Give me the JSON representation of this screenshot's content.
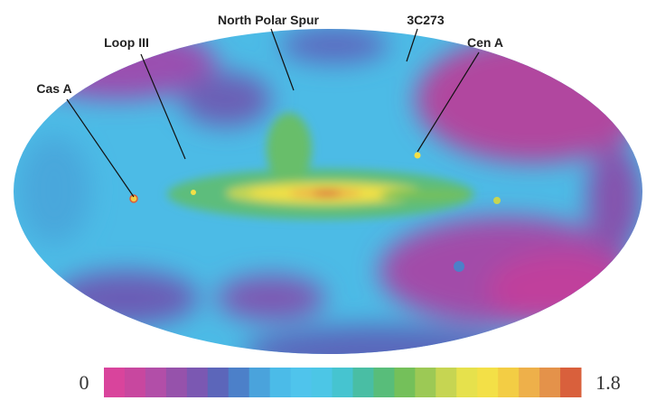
{
  "annotations": {
    "north_polar_spur": "North Polar Spur",
    "c3c273": "3C273",
    "loop_iii": "Loop III",
    "cen_a": "Cen A",
    "cas_a": "Cas A"
  },
  "colorbar": {
    "min": "0",
    "max": "1.8",
    "colors": [
      "#d9449c",
      "#c8479f",
      "#b24ea8",
      "#9652ab",
      "#7b58b2",
      "#5c66ba",
      "#4c80c9",
      "#4aa3dc",
      "#4bbbe8",
      "#4fc4ec",
      "#4cc6e6",
      "#46c4d0",
      "#49bea4",
      "#58bd7a",
      "#74c05a",
      "#9cc955",
      "#c6d552",
      "#e6e14c",
      "#f3e047",
      "#f3cd44",
      "#eeb04a",
      "#e4924a",
      "#d9603c"
    ]
  }
}
